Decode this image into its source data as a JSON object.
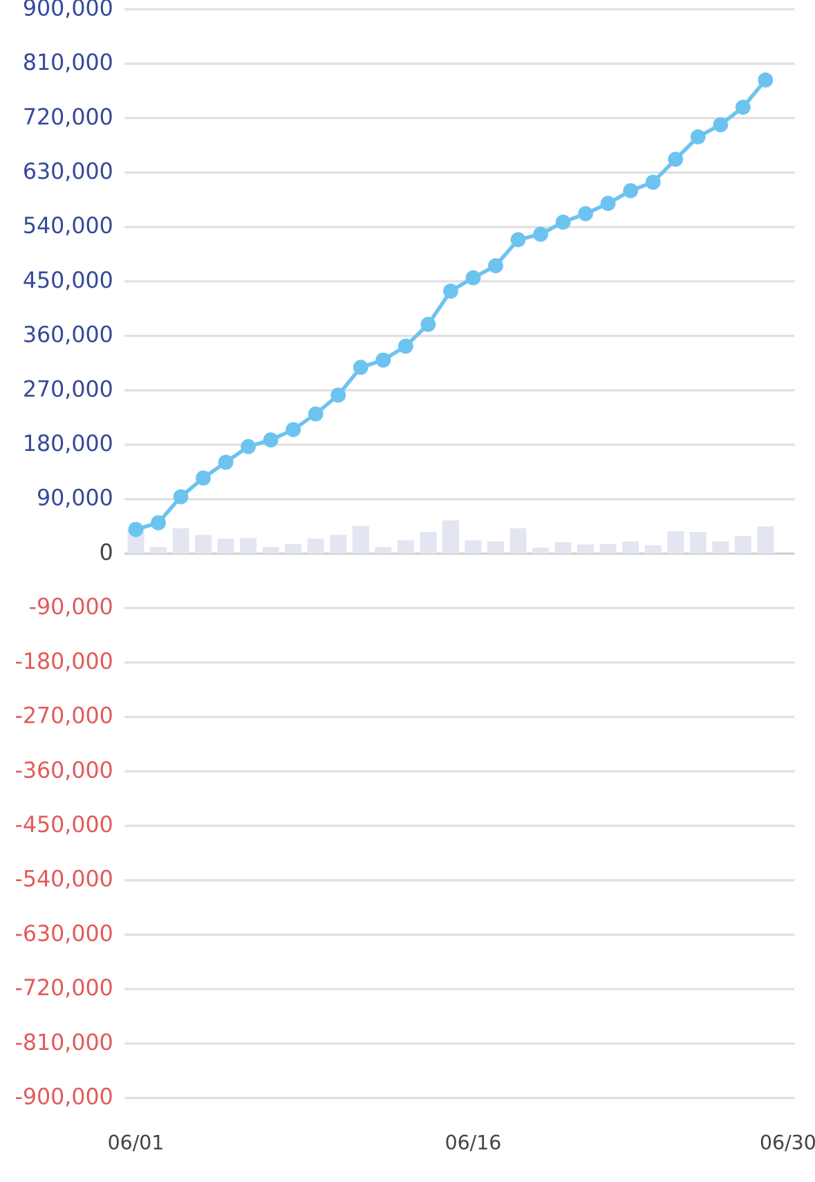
{
  "chart_data": {
    "type": "line",
    "categories": [
      "06/01",
      null,
      null,
      null,
      null,
      null,
      null,
      null,
      null,
      null,
      null,
      null,
      null,
      null,
      null,
      "06/16",
      null,
      null,
      null,
      null,
      null,
      null,
      null,
      null,
      null,
      null,
      null,
      null,
      null,
      "06/30"
    ],
    "series": [
      {
        "type": "line",
        "color": "#6cc3f0",
        "values": [
          40000,
          51000,
          94000,
          125000,
          151000,
          177000,
          188000,
          205000,
          231000,
          262000,
          308000,
          320000,
          343000,
          379000,
          434000,
          456000,
          476000,
          519000,
          528000,
          548000,
          562000,
          579000,
          600000,
          614000,
          652000,
          689000,
          709000,
          738000,
          783000,
          null
        ]
      },
      {
        "type": "bar",
        "color": "#e3e6f1",
        "values": [
          41000,
          11000,
          42000,
          31000,
          25000,
          26000,
          11000,
          16000,
          25000,
          31000,
          46000,
          11000,
          22000,
          36000,
          55000,
          22000,
          20000,
          42000,
          10000,
          19000,
          15000,
          16000,
          20000,
          14000,
          37000,
          36000,
          20000,
          29000,
          45000,
          null
        ]
      }
    ],
    "ylim": [
      -900000,
      900000
    ],
    "yticks": [
      {
        "value": 900000,
        "label": "900,000"
      },
      {
        "value": 810000,
        "label": "810,000"
      },
      {
        "value": 720000,
        "label": "720,000"
      },
      {
        "value": 630000,
        "label": "630,000"
      },
      {
        "value": 540000,
        "label": "540,000"
      },
      {
        "value": 450000,
        "label": "450,000"
      },
      {
        "value": 360000,
        "label": "360,000"
      },
      {
        "value": 270000,
        "label": "270,000"
      },
      {
        "value": 180000,
        "label": "180,000"
      },
      {
        "value": 90000,
        "label": "90,000"
      },
      0,
      {
        "value": -90000,
        "label": "-90,000"
      },
      {
        "value": -180000,
        "label": "-180,000"
      },
      {
        "value": -270000,
        "label": "-270,000"
      },
      {
        "value": -360000,
        "label": "-360,000"
      },
      {
        "value": -450000,
        "label": "-450,000"
      },
      {
        "value": -540000,
        "label": "-540,000"
      },
      {
        "value": -630000,
        "label": "-630,000"
      },
      {
        "value": -720000,
        "label": "-720,000"
      },
      {
        "value": -810000,
        "label": "-810,000"
      },
      {
        "value": -900000,
        "label": "-900,000"
      }
    ],
    "grid": true,
    "tick_colors": {
      "positive": "#34499a",
      "zero": "#444444",
      "negative": "#e25a5a"
    }
  }
}
